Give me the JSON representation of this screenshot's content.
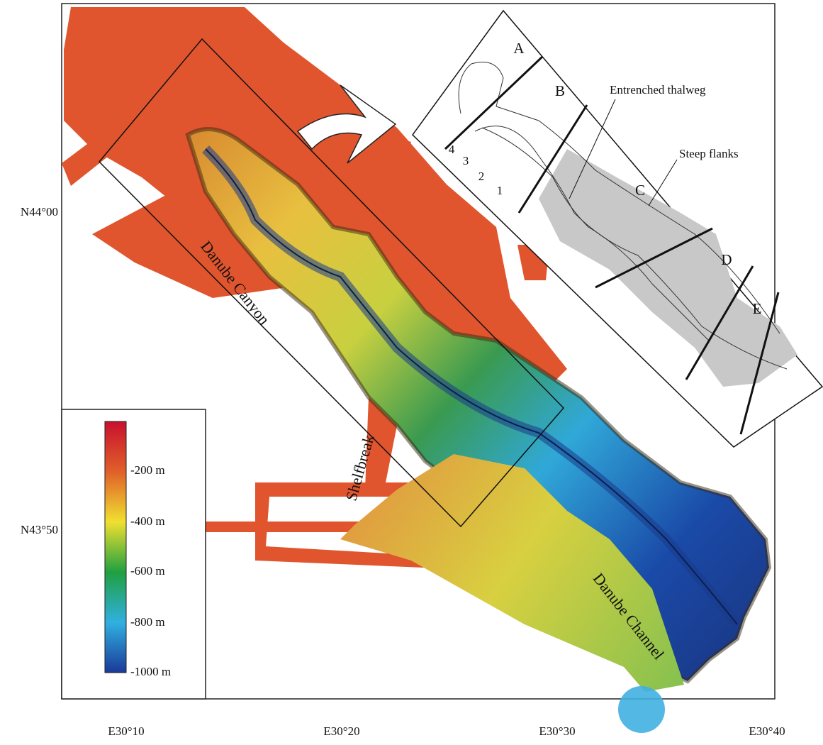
{
  "map": {
    "x_labels": [
      "E30°10",
      "E30°20",
      "E30°30",
      "E30°40"
    ],
    "y_labels": [
      "N44°00",
      "N43°50"
    ],
    "annotations": [
      "Danube Canyon",
      "Shelfbreak",
      "Danube Channel"
    ]
  },
  "legend": {
    "labels": [
      "-200 m",
      "-400 m",
      "-600 m",
      "-800 m",
      "-1000 m"
    ]
  },
  "inset": {
    "sections": [
      "A",
      "B",
      "C",
      "D",
      "E"
    ],
    "labels": [
      "Entrenched thalweg",
      "Steep flanks"
    ],
    "thalwegs": [
      "4",
      "3",
      "2",
      "1"
    ]
  }
}
